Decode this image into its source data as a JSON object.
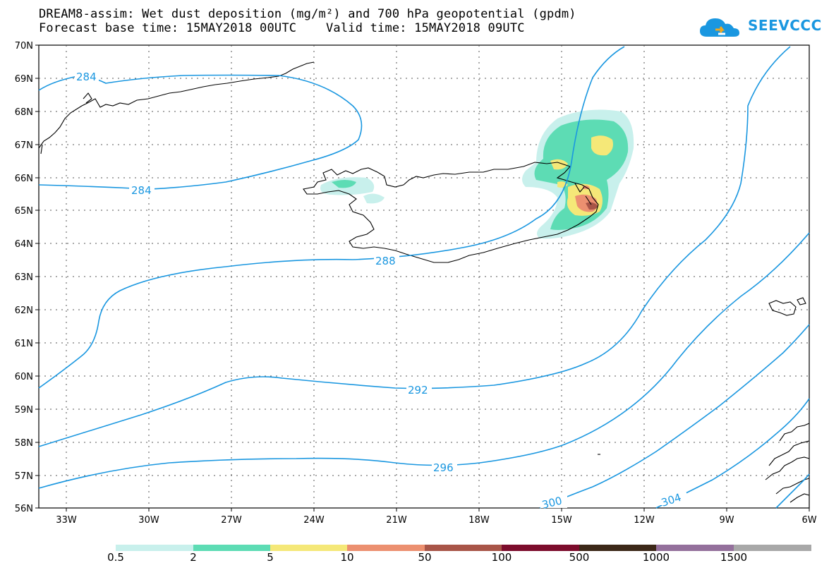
{
  "title": {
    "line1": "DREAM8-assim: Wet dust deposition (mg/m²) and 700 hPa geopotential (gpdm)",
    "line2": "Forecast base time: 15MAY2018 00UTC    Valid time: 15MAY2018 09UTC"
  },
  "logo": {
    "text": "SEEVCCC",
    "icon": "cloud-icon",
    "color": "#1a97e0"
  },
  "map": {
    "lat_labels": [
      "70N",
      "69N",
      "68N",
      "67N",
      "66N",
      "65N",
      "64N",
      "63N",
      "62N",
      "61N",
      "60N",
      "59N",
      "58N",
      "57N",
      "56N"
    ],
    "lon_labels": [
      "33W",
      "30W",
      "27W",
      "24W",
      "21W",
      "18W",
      "15W",
      "12W",
      "9W",
      "6W"
    ],
    "lat_range": [
      56,
      70
    ],
    "lon_range": [
      -34.0,
      -6.0
    ],
    "contour_labels": [
      "284",
      "284",
      "288",
      "292",
      "296",
      "300",
      "304"
    ],
    "contour_color": "#1a97e0",
    "grid": true
  },
  "legend": {
    "labels": [
      "0.5",
      "2",
      "5",
      "10",
      "50",
      "100",
      "500",
      "1000",
      "1500"
    ],
    "colors": [
      "#c8f0ec",
      "#5ddcb4",
      "#f5e878",
      "#ec9070",
      "#a85548",
      "#7c0c2c",
      "#3c2818",
      "#94709c",
      "#a8a8a8"
    ]
  }
}
